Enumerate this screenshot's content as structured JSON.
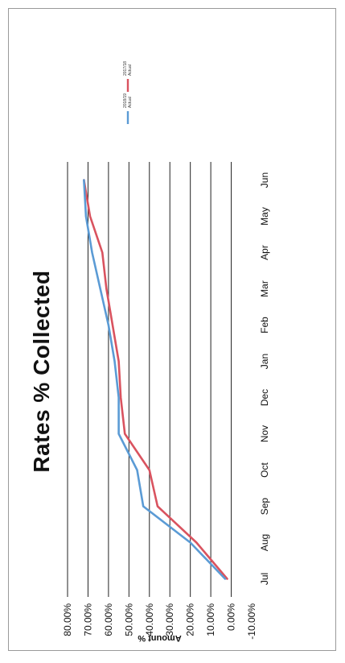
{
  "chart_data": {
    "type": "line",
    "title": "Rates % Collected",
    "ylabel": "Amount %",
    "xlabel": "",
    "categories": [
      "Jul",
      "Aug",
      "Sep",
      "Oct",
      "Nov",
      "Dec",
      "Jan",
      "Feb",
      "Mar",
      "Apr",
      "May",
      "Jun"
    ],
    "ylim": [
      -10,
      80
    ],
    "yticks": [
      "-10.00%",
      "0.00%",
      "10.00%",
      "20.00%",
      "30.00%",
      "40.00%",
      "50.00%",
      "60.00%",
      "70.00%",
      "80.00%"
    ],
    "grid": true,
    "legend_position": "top-right",
    "series": [
      {
        "name": "2018/19 Actual",
        "color": "#5b9bd5",
        "values": [
          3,
          20,
          43,
          46,
          55,
          55,
          57,
          60,
          64,
          68,
          71,
          72
        ]
      },
      {
        "name": "2017/18 Actual",
        "color": "#d9535f",
        "values": [
          2,
          17,
          36,
          40,
          52,
          54,
          55,
          58,
          61,
          63,
          69,
          72
        ]
      }
    ]
  }
}
